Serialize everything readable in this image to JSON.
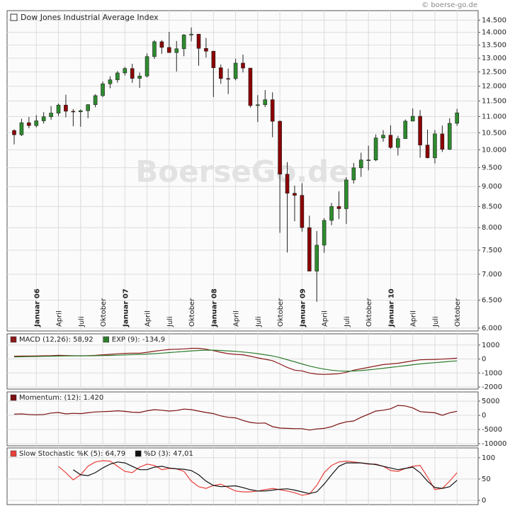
{
  "chart_data": [
    {
      "type": "candlestick",
      "title": "Dow Jones Industrial Average Index",
      "watermark": "BoerseGo.de",
      "copyright": "© boerse-go.de",
      "log_scale": true,
      "grid": true,
      "up_color": "#2e8b2e",
      "down_color": "#8b0000",
      "categories": [
        null,
        null,
        null,
        "Januar 06",
        null,
        null,
        "April",
        null,
        null,
        "Juli",
        null,
        null,
        "Oktober",
        null,
        null,
        "Januar 07",
        null,
        null,
        "April",
        null,
        null,
        "Juli",
        null,
        null,
        "Oktober",
        null,
        null,
        "Januar 08",
        null,
        null,
        "April",
        null,
        null,
        "Juli",
        null,
        null,
        "Oktober",
        null,
        null,
        "Januar 09",
        null,
        null,
        "April",
        null,
        null,
        "Juli",
        null,
        null,
        "Oktober",
        null,
        null,
        "Januar 10",
        null,
        null,
        "April",
        null,
        null,
        "Juli",
        null,
        null,
        "Oktober"
      ],
      "open": [
        10569,
        10440,
        10806,
        10718,
        10865,
        10993,
        11109,
        11367,
        11168,
        11150,
        11185,
        11381,
        11679,
        12081,
        12221,
        12463,
        12622,
        12269,
        12354,
        13063,
        13628,
        13409,
        13212,
        13358,
        13896,
        13930,
        13372,
        13265,
        12650,
        12266,
        12263,
        12820,
        12638,
        11350,
        11378,
        11544,
        10851,
        9325,
        8829,
        8776,
        8001,
        7063,
        7609,
        8168,
        8500,
        8447,
        9172,
        9496,
        9712,
        9713,
        10345,
        10428,
        10067,
        10325,
        10857,
        11009,
        10137,
        9774,
        10466,
        10015,
        10788
      ],
      "high": [
        10600,
        10931,
        10985,
        11043,
        11138,
        11334,
        11416,
        11709,
        11242,
        11227,
        11396,
        11727,
        12163,
        12342,
        12529,
        12683,
        12795,
        12478,
        13178,
        13692,
        13692,
        14021,
        13658,
        13930,
        14198,
        13930,
        13779,
        13280,
        12767,
        12622,
        12982,
        13136,
        12638,
        11697,
        11867,
        11790,
        10882,
        9654,
        9026,
        9088,
        8280,
        7924,
        8221,
        8588,
        8878,
        9242,
        9630,
        9917,
        10119,
        10450,
        10580,
        10729,
        10410,
        10908,
        11258,
        11205,
        10594,
        10584,
        10719,
        10948,
        11245
      ],
      "low": [
        10156,
        10400,
        10637,
        10662,
        10780,
        10900,
        11015,
        10975,
        10699,
        10683,
        10946,
        11295,
        11631,
        11926,
        12120,
        12371,
        12114,
        11939,
        12300,
        12980,
        13166,
        13234,
        12518,
        13075,
        13645,
        12724,
        13027,
        11634,
        12080,
        11731,
        12200,
        12480,
        11288,
        10827,
        11301,
        10366,
        7882,
        7450,
        8149,
        7909,
        7063,
        6470,
        7444,
        8057,
        8200,
        8087,
        9080,
        9253,
        9430,
        9678,
        10236,
        10025,
        9835,
        10330,
        10850,
        9774,
        9757,
        9614,
        9937,
        9994,
        10711
      ],
      "close": [
        10440,
        10806,
        10718,
        10865,
        10993,
        11109,
        11367,
        11168,
        11150,
        11185,
        11381,
        11679,
        12081,
        12221,
        12463,
        12622,
        12269,
        12354,
        13063,
        13628,
        13409,
        13212,
        13358,
        13896,
        13930,
        13372,
        13265,
        12650,
        12266,
        12263,
        12820,
        12638,
        11350,
        11378,
        11544,
        10851,
        9325,
        8829,
        8776,
        8001,
        7063,
        7609,
        8168,
        8500,
        8447,
        9172,
        9496,
        9712,
        9713,
        10345,
        10428,
        10067,
        10325,
        10857,
        11009,
        10137,
        9774,
        10466,
        10015,
        10788,
        11118
      ],
      "ylim": [
        5950,
        14900
      ],
      "yticks": [
        {
          "value": 6000,
          "label": "6.000"
        },
        {
          "value": 6500,
          "label": "6.500"
        },
        {
          "value": 7000,
          "label": "7.000"
        },
        {
          "value": 7500,
          "label": "7.500"
        },
        {
          "value": 8000,
          "label": "8.000"
        },
        {
          "value": 8500,
          "label": "8.500"
        },
        {
          "value": 9000,
          "label": "9.000"
        },
        {
          "value": 9500,
          "label": "9.500"
        },
        {
          "value": 10000,
          "label": "10.000"
        },
        {
          "value": 10500,
          "label": "10.500"
        },
        {
          "value": 11000,
          "label": "11.000"
        },
        {
          "value": 11500,
          "label": "11.500"
        },
        {
          "value": 12000,
          "label": "12.000"
        },
        {
          "value": 12500,
          "label": "12.500"
        },
        {
          "value": 13000,
          "label": "13.000"
        },
        {
          "value": 13500,
          "label": "13.500"
        },
        {
          "value": 14000,
          "label": "14.000"
        },
        {
          "value": 14500,
          "label": "14.500"
        }
      ]
    },
    {
      "type": "line",
      "grid": true,
      "ylim": [
        -2150,
        1800
      ],
      "yticks": [
        1000,
        0,
        -1000,
        -2000
      ],
      "series": [
        {
          "name": "MACD (12,26): 58,92",
          "color": "#8b1a1a",
          "values": [
            200,
            210,
            210,
            220,
            230,
            240,
            260,
            250,
            240,
            230,
            240,
            260,
            300,
            330,
            370,
            400,
            420,
            420,
            480,
            560,
            620,
            680,
            700,
            720,
            760,
            760,
            700,
            600,
            480,
            380,
            330,
            300,
            200,
            80,
            -20,
            -120,
            -350,
            -600,
            -800,
            -850,
            -1000,
            -1080,
            -1100,
            -1080,
            -1050,
            -950,
            -800,
            -700,
            -600,
            -500,
            -400,
            -350,
            -300,
            -220,
            -130,
            -60,
            -40,
            -30,
            -10,
            20,
            58.92
          ]
        },
        {
          "name": "EXP (9): -134,9",
          "color": "#2e7d2e",
          "values": [
            150,
            160,
            170,
            180,
            190,
            200,
            210,
            220,
            225,
            230,
            230,
            235,
            245,
            255,
            270,
            290,
            310,
            330,
            350,
            380,
            420,
            460,
            500,
            540,
            580,
            610,
            630,
            630,
            610,
            580,
            550,
            500,
            450,
            380,
            300,
            220,
            100,
            -50,
            -200,
            -350,
            -500,
            -620,
            -720,
            -800,
            -850,
            -870,
            -860,
            -830,
            -780,
            -720,
            -660,
            -600,
            -540,
            -480,
            -410,
            -350,
            -300,
            -260,
            -220,
            -170,
            -134.9
          ]
        }
      ]
    },
    {
      "type": "line",
      "grid": true,
      "ylim": [
        -10750,
        8250
      ],
      "yticks": [
        5000,
        0,
        -5000,
        -10000
      ],
      "series": [
        {
          "name": "Momentum: (12): 1.420",
          "color": "#7a1010",
          "values": [
            400,
            500,
            300,
            200,
            300,
            800,
            1000,
            500,
            700,
            600,
            900,
            1200,
            1300,
            1400,
            1600,
            1400,
            1100,
            1000,
            1600,
            2000,
            1800,
            1500,
            1700,
            2200,
            2000,
            1500,
            1000,
            600,
            -200,
            -700,
            -900,
            -1800,
            -2500,
            -2800,
            -2700,
            -4000,
            -4500,
            -4600,
            -4700,
            -4700,
            -5200,
            -4800,
            -4600,
            -4000,
            -3000,
            -2300,
            -2000,
            -700,
            400,
            1500,
            1800,
            2300,
            3500,
            3300,
            2600,
            1300,
            1100,
            900,
            0,
            900,
            1420
          ]
        }
      ]
    },
    {
      "type": "line",
      "grid": true,
      "ylim": [
        -10,
        123
      ],
      "yticks": [
        0,
        50,
        100
      ],
      "series": [
        {
          "name": "Slow Stochastic %K (5): 64,79",
          "color": "#e8403a",
          "values": [
            null,
            null,
            null,
            null,
            null,
            null,
            80,
            65,
            48,
            60,
            80,
            90,
            93,
            92,
            80,
            68,
            65,
            78,
            85,
            82,
            72,
            75,
            74,
            68,
            45,
            32,
            28,
            35,
            38,
            30,
            22,
            20,
            20,
            22,
            25,
            28,
            25,
            22,
            18,
            12,
            15,
            35,
            65,
            82,
            90,
            92,
            90,
            88,
            85,
            85,
            80,
            70,
            68,
            75,
            80,
            82,
            55,
            25,
            28,
            45,
            64.79
          ]
        },
        {
          "name": "%D (3): 47,01",
          "color": "#111111",
          "values": [
            null,
            null,
            null,
            null,
            null,
            null,
            null,
            null,
            72,
            60,
            58,
            65,
            76,
            85,
            90,
            88,
            80,
            72,
            72,
            78,
            80,
            76,
            74,
            73,
            70,
            60,
            45,
            35,
            32,
            33,
            34,
            30,
            25,
            22,
            22,
            24,
            26,
            27,
            24,
            20,
            16,
            20,
            38,
            60,
            80,
            88,
            88,
            88,
            86,
            84,
            80,
            76,
            72,
            75,
            78,
            65,
            45,
            30,
            28,
            32,
            47.01
          ]
        }
      ]
    }
  ]
}
